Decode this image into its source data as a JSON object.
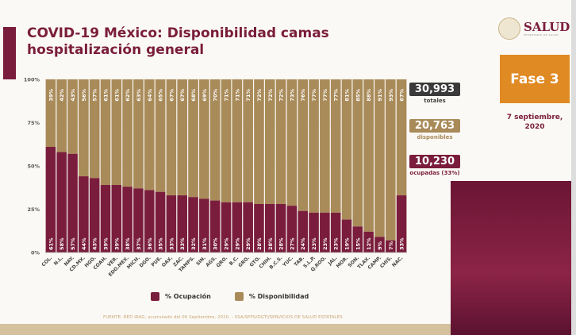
{
  "title": "COVID-19 México: Disponibilidad camas hospitalización general",
  "logo": {
    "name": "SALUD",
    "subtitle": "SECRETARÍA DE SALUD"
  },
  "phase": "Fase 3",
  "date": "7 septiembre, 2020",
  "stats": {
    "total": {
      "value": "30,993",
      "label": "totales"
    },
    "available": {
      "value": "20,763",
      "label": "disponibles"
    },
    "occupied": {
      "value": "10,230",
      "label": "ocupadas (33%)"
    }
  },
  "source": "FUENTE: RED IRAG, acumulado del 06 Septiembre, 2020. -  SSA/SPPS/DGTI/SERVICIOS DE SALUD ESTATALES",
  "colors": {
    "occupied": "#7a1d3c",
    "available": "#a98b5a"
  },
  "chart_data": {
    "type": "bar",
    "stacked": true,
    "title": "COVID-19 México: Disponibilidad camas hospitalización general",
    "ylim": [
      0,
      100
    ],
    "yticks": [
      "0%",
      "25%",
      "50%",
      "75%",
      "100%"
    ],
    "categories": [
      "COL.",
      "N.L.",
      "NAY.",
      "CD.MX.",
      "HGO.",
      "COAH.",
      "VER.",
      "EDO.MEX.",
      "MICH.",
      "DGO.",
      "PUE.",
      "OAX.",
      "ZAC.",
      "TAMPS.",
      "SIN.",
      "AGS.",
      "QRO.",
      "B.C.",
      "GRO.",
      "GTO.",
      "CHIH.",
      "B.C.S.",
      "YUC.",
      "TAB.",
      "S.L.P.",
      "Q.ROO.",
      "JAL.",
      "MOR.",
      "SON.",
      "TLAX.",
      "CAMP.",
      "CHIS.",
      "NAC."
    ],
    "series": [
      {
        "name": "% Ocupación",
        "values": [
          61,
          58,
          57,
          44,
          43,
          39,
          39,
          38,
          37,
          36,
          35,
          33,
          33,
          32,
          31,
          30,
          29,
          29,
          29,
          28,
          28,
          28,
          27,
          24,
          23,
          23,
          23,
          19,
          15,
          12,
          9,
          7,
          33
        ]
      },
      {
        "name": "% Disponibilidad",
        "values": [
          39,
          42,
          43,
          56,
          57,
          61,
          61,
          62,
          63,
          64,
          65,
          67,
          67,
          68,
          69,
          70,
          71,
          71,
          71,
          72,
          72,
          72,
          73,
          76,
          77,
          77,
          77,
          81,
          85,
          88,
          91,
          93,
          67
        ]
      }
    ],
    "legend": "bottom"
  }
}
